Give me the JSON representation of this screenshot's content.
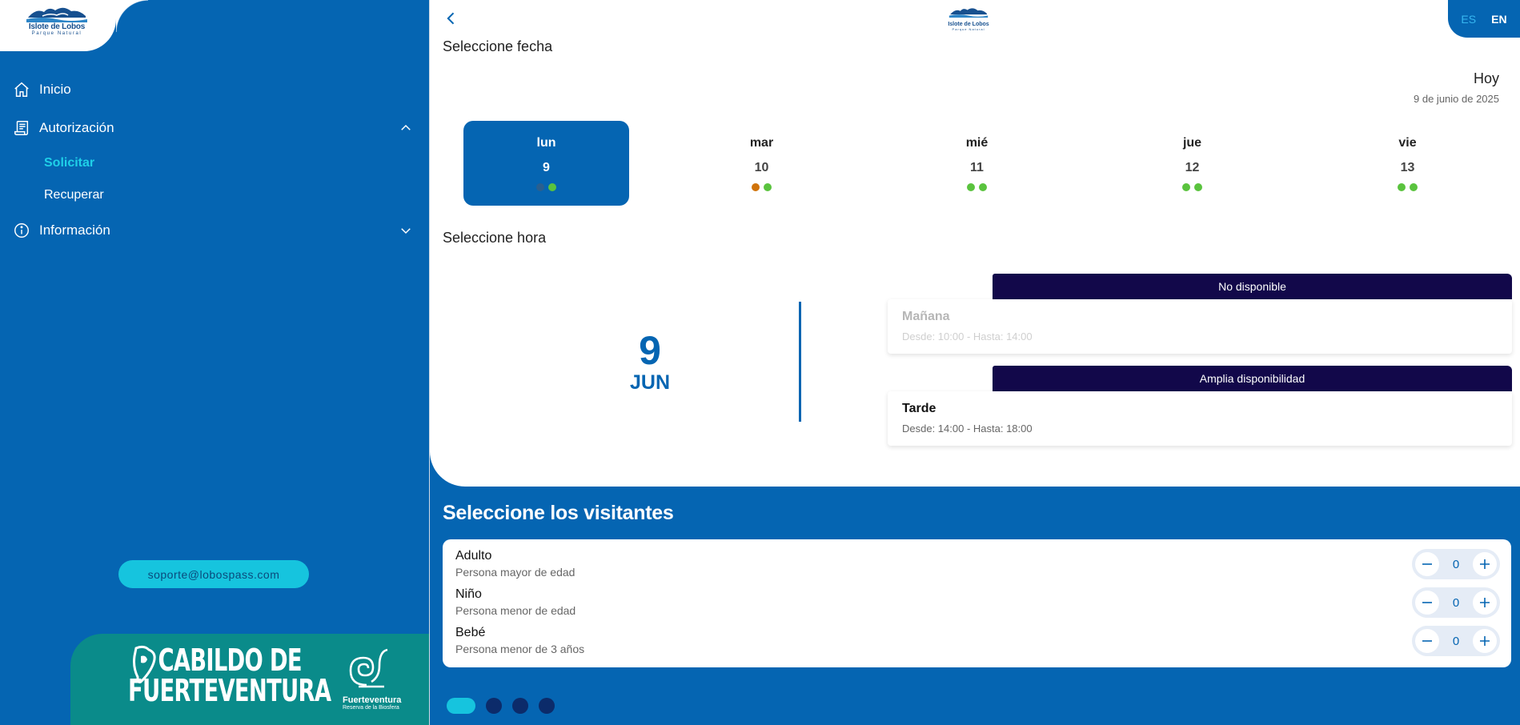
{
  "brand": {
    "logo_line1": "Islote de Lobos",
    "logo_line2": "Parque Natural"
  },
  "sidebar": {
    "items": [
      {
        "label": "Inicio",
        "icon": "home-icon"
      },
      {
        "label": "Autorización",
        "icon": "document-icon",
        "expanded": true
      },
      {
        "label": "Información",
        "icon": "info-icon",
        "expanded": false
      }
    ],
    "sub_items": [
      {
        "label": "Solicitar",
        "active": true
      },
      {
        "label": "Recuperar",
        "active": false
      }
    ],
    "support_email": "soporte@lobospass.com",
    "footer": {
      "cabildo_line1": "CABILDO DE",
      "cabildo_line2": "FUERTEVENTURA",
      "fv_name": "Fuerteventura",
      "fv_sub": "Reserva de la Biosfera"
    }
  },
  "header": {
    "lang_es": "ES",
    "lang_en": "EN",
    "active_lang": "ES"
  },
  "date_section": {
    "title": "Seleccione fecha",
    "today_label": "Hoy",
    "today_date": "9 de junio de 2025",
    "days": [
      {
        "name": "lun",
        "num": "9",
        "selected": true,
        "dots": [
          "#2a5f8f",
          "#5ac33e"
        ]
      },
      {
        "name": "mar",
        "num": "10",
        "selected": false,
        "dots": [
          "#d0730a",
          "#5ac33e"
        ]
      },
      {
        "name": "mié",
        "num": "11",
        "selected": false,
        "dots": [
          "#5ac33e",
          "#5ac33e"
        ]
      },
      {
        "name": "jue",
        "num": "12",
        "selected": false,
        "dots": [
          "#5ac33e",
          "#5ac33e"
        ]
      },
      {
        "name": "vie",
        "num": "13",
        "selected": false,
        "dots": [
          "#5ac33e",
          "#5ac33e"
        ]
      }
    ]
  },
  "time_section": {
    "title": "Seleccione hora",
    "big_day": "9",
    "big_month": "JUN",
    "slots": [
      {
        "badge": "No disponible",
        "title": "Mañana",
        "range": "Desde: 10:00 - Hasta: 14:00",
        "available": false
      },
      {
        "badge": "Amplia disponibilidad",
        "title": "Tarde",
        "range": "Desde: 14:00 - Hasta: 18:00",
        "available": true
      }
    ]
  },
  "visitors": {
    "title": "Seleccione los visitantes",
    "rows": [
      {
        "name": "Adulto",
        "desc": "Persona mayor de edad",
        "count": "0"
      },
      {
        "name": "Niño",
        "desc": "Persona menor de edad",
        "count": "0"
      },
      {
        "name": "Bebé",
        "desc": "Persona menor de 3 años",
        "count": "0"
      }
    ]
  },
  "pager": {
    "pages": 4,
    "active": 0
  },
  "colors": {
    "primary": "#0565b2",
    "accent": "#16c4de",
    "badge": "#12084a",
    "teal": "#0a8b8a"
  }
}
